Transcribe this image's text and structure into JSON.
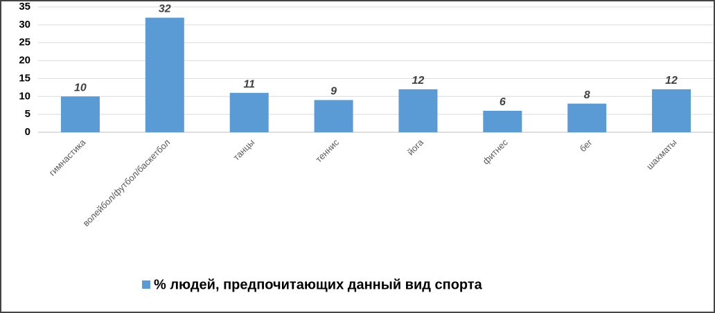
{
  "chart_data": {
    "type": "bar",
    "categories": [
      "гимнастика",
      "волейбол/футбол/баскетбол",
      "танцы",
      "теннис",
      "йога",
      "фитнес",
      "бег",
      "шахматы"
    ],
    "series": [
      {
        "name": "% людей, предпочитающих данный вид спорта",
        "color": "#5b9bd5",
        "values": [
          10,
          32,
          11,
          9,
          12,
          6,
          8,
          12
        ]
      }
    ],
    "ylim": [
      0,
      35
    ],
    "yticks": [
      0,
      5,
      10,
      15,
      20,
      25,
      30,
      35
    ],
    "grid": true,
    "legend": "bottom"
  }
}
